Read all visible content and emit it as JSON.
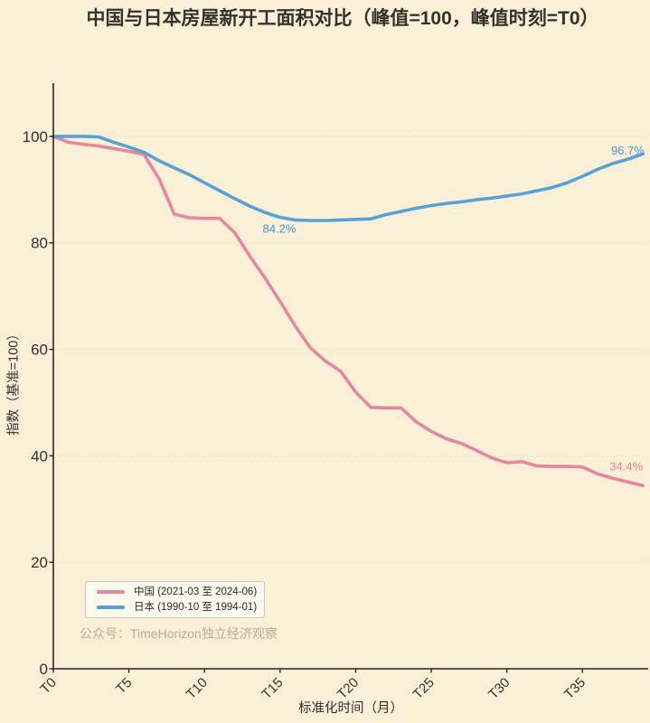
{
  "title": "中国与日本房屋新开工面积对比（峰值=100，峰值时刻=T0）",
  "watermark": "公众号：TimeHorizon独立经济观察",
  "colors": {
    "background": "#faf0d8",
    "axis": "#27241e",
    "tick_text": "#33302b",
    "grid": "#ded6c2",
    "china": "#e5889f",
    "japan": "#57a1d4"
  },
  "chart_data": {
    "type": "line",
    "title": "中国与日本房屋新开工面积对比（峰值=100，峰值时刻=T0）",
    "xlabel": "标准化时间（月）",
    "ylabel": "指数（基准=100）",
    "xlim": [
      0,
      39.35
    ],
    "ylim": [
      0,
      110
    ],
    "grid": "horizontal dotted",
    "legend_position": "lower left",
    "x_tick_values": [
      0,
      5,
      10,
      15,
      20,
      25,
      30,
      35
    ],
    "x_tick_labels": [
      "T0",
      "T5",
      "T10",
      "T15",
      "T20",
      "T25",
      "T30",
      "T35"
    ],
    "y_ticks": [
      0,
      20,
      40,
      60,
      80,
      100
    ],
    "x": [
      0,
      1,
      2,
      3,
      4,
      5,
      6,
      7,
      8,
      9,
      10,
      11,
      12,
      13,
      14,
      15,
      16,
      17,
      18,
      19,
      20,
      21,
      22,
      23,
      24,
      25,
      26,
      27,
      28,
      29,
      30,
      31,
      32,
      33,
      34,
      35,
      36,
      37,
      38,
      39
    ],
    "series": [
      {
        "id": "china",
        "name": "中国 (2021-03 至 2024-06)",
        "color": "#e5889f",
        "values": [
          100,
          98.9,
          98.5,
          98.2,
          97.7,
          97.2,
          96.6,
          92.0,
          85.4,
          84.7,
          84.6,
          84.6,
          81.9,
          77.5,
          73.4,
          69.0,
          64.4,
          60.3,
          57.8,
          55.9,
          52.0,
          49.1,
          49.0,
          49.0,
          46.4,
          44.6,
          43.2,
          42.3,
          41.0,
          39.6,
          38.7,
          38.9,
          38.1,
          38.0,
          38.0,
          37.9,
          36.6,
          35.8,
          35.1,
          34.4
        ]
      },
      {
        "id": "japan",
        "name": "日本 (1990-10 至 1994-01)",
        "color": "#57a1d4",
        "values": [
          100,
          100,
          100,
          99.9,
          98.9,
          98.0,
          97.0,
          95.4,
          94.1,
          92.8,
          91.3,
          89.8,
          88.3,
          86.9,
          85.7,
          84.8,
          84.3,
          84.2,
          84.2,
          84.3,
          84.4,
          84.5,
          85.3,
          85.9,
          86.5,
          87.0,
          87.4,
          87.7,
          88.1,
          88.4,
          88.8,
          89.2,
          89.8,
          90.4,
          91.3,
          92.5,
          93.8,
          94.9,
          95.7,
          96.7
        ]
      }
    ],
    "annotations": [
      {
        "name": "japan-min-label",
        "text": "84.2%",
        "x": 14.95,
        "y": 82.6,
        "anchor": "middle",
        "color": "#4796cc"
      },
      {
        "name": "japan-end-label",
        "text": "96.7%",
        "x": 39.1,
        "y": 97.3,
        "anchor": "end",
        "color": "#4796cc"
      },
      {
        "name": "china-end-label",
        "text": "34.4%",
        "x": 39.0,
        "y": 37.9,
        "anchor": "end",
        "color": "#e2849c"
      }
    ]
  },
  "legend": {
    "items": [
      {
        "label": "中国 (2021-03 至 2024-06)"
      },
      {
        "label": "日本 (1990-10 至 1994-01)"
      }
    ]
  }
}
